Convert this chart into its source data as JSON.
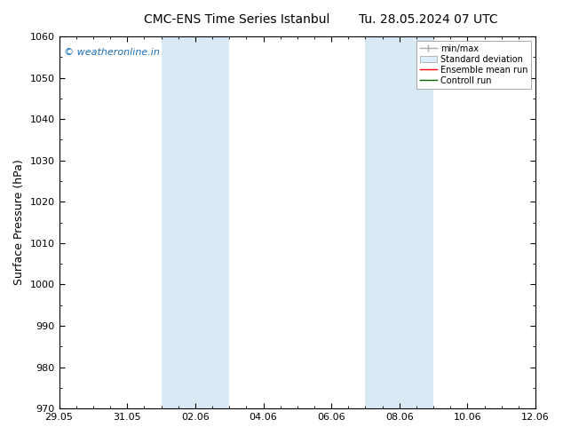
{
  "title_left": "CMC-ENS Time Series Istanbul",
  "title_right": "Tu. 28.05.2024 07 UTC",
  "ylabel": "Surface Pressure (hPa)",
  "ylim": [
    970,
    1060
  ],
  "yticks": [
    970,
    980,
    990,
    1000,
    1010,
    1020,
    1030,
    1040,
    1050,
    1060
  ],
  "xtick_labels": [
    "29.05",
    "31.05",
    "02.06",
    "04.06",
    "06.06",
    "08.06",
    "10.06",
    "12.06"
  ],
  "xtick_positions_days": [
    0,
    2,
    4,
    6,
    8,
    10,
    12,
    14
  ],
  "shaded_bands": [
    {
      "x_start_day": 3.0,
      "x_end_day": 5.0
    },
    {
      "x_start_day": 9.0,
      "x_end_day": 11.0
    }
  ],
  "shade_color": "#daeaf5",
  "watermark": "© weatheronline.in",
  "watermark_color": "#1a6eb5",
  "legend_items": [
    {
      "label": "min/max",
      "color": "#aaaaaa",
      "type": "line"
    },
    {
      "label": "Standard deviation",
      "color": "#cccccc",
      "type": "fill"
    },
    {
      "label": "Ensemble mean run",
      "color": "#ff0000",
      "type": "line"
    },
    {
      "label": "Controll run",
      "color": "#006400",
      "type": "line"
    }
  ],
  "bg_color": "#ffffff",
  "title_fontsize": 10,
  "tick_fontsize": 8,
  "ylabel_fontsize": 9,
  "spine_color": "#000000"
}
